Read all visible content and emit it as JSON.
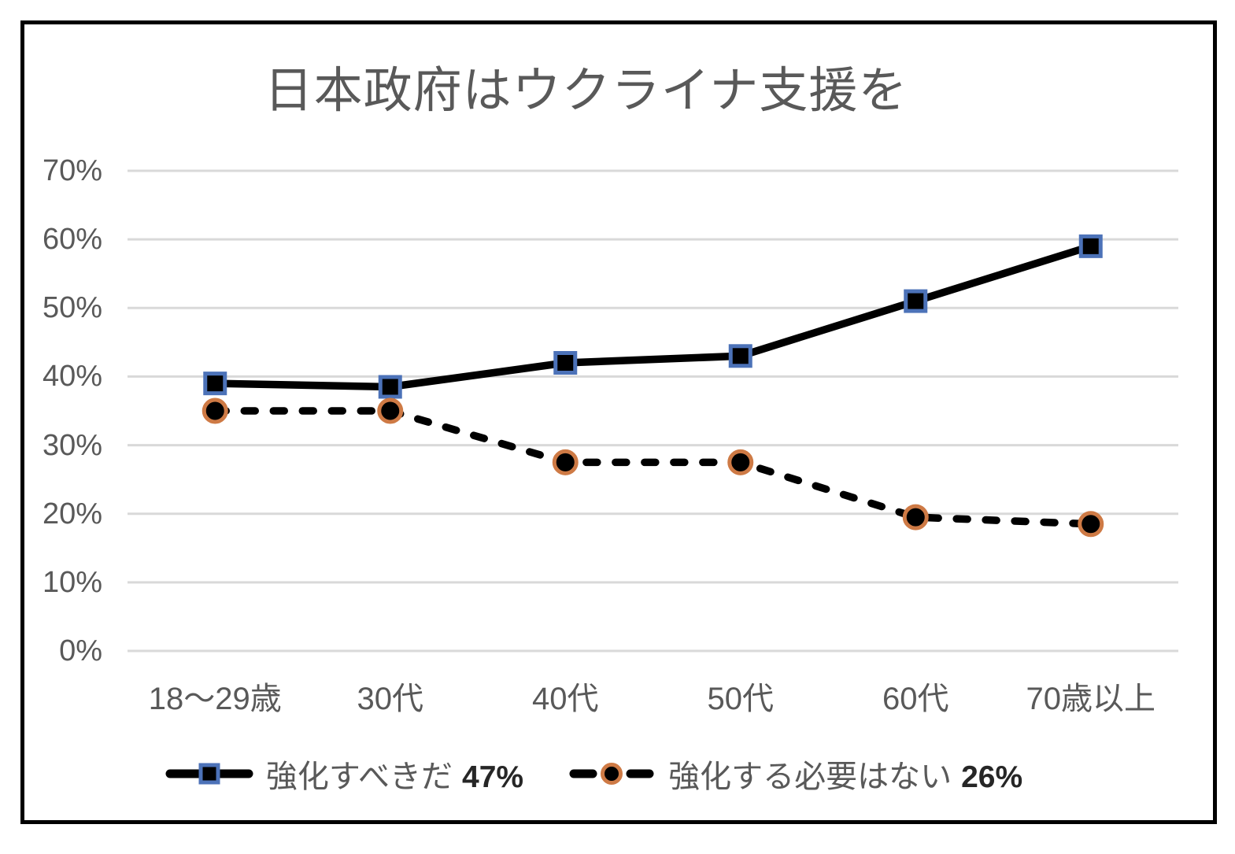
{
  "chart_data": {
    "type": "line",
    "title": "日本政府はウクライナ支援を",
    "categories": [
      "18〜29歳",
      "30代",
      "40代",
      "50代",
      "60代",
      "70歳以上"
    ],
    "y_ticks": [
      "0%",
      "10%",
      "20%",
      "30%",
      "40%",
      "50%",
      "60%",
      "70%"
    ],
    "y_tick_values": [
      0,
      10,
      20,
      30,
      40,
      50,
      60,
      70
    ],
    "ylim": [
      0,
      70
    ],
    "grid": true,
    "legend_position": "bottom",
    "colors": {
      "text_gray": "#595959",
      "gridline": "#D9D9D9",
      "line_black": "#000000",
      "square_marker_border_blue": "#4C72B8",
      "circle_marker_border_orange": "#CE7A45",
      "frame_border": "#000000",
      "legend_value_black": "#262626"
    },
    "series": [
      {
        "name": "強化すべきだ",
        "overall": "47%",
        "legend_label": "強化すべきだ 47%",
        "values": [
          39,
          38.5,
          42,
          43,
          51,
          59
        ],
        "line_style": "solid",
        "marker": "square",
        "line_color": "#000000",
        "marker_fill": "#000000",
        "marker_border": "#4C72B8"
      },
      {
        "name": "強化する必要はない",
        "overall": "26%",
        "legend_label": "強化する必要はない 26%",
        "values": [
          35,
          35,
          27.5,
          27.5,
          19.5,
          18.5
        ],
        "line_style": "dashed",
        "marker": "circle",
        "line_color": "#000000",
        "marker_fill": "#000000",
        "marker_border": "#CE7A45"
      }
    ]
  }
}
